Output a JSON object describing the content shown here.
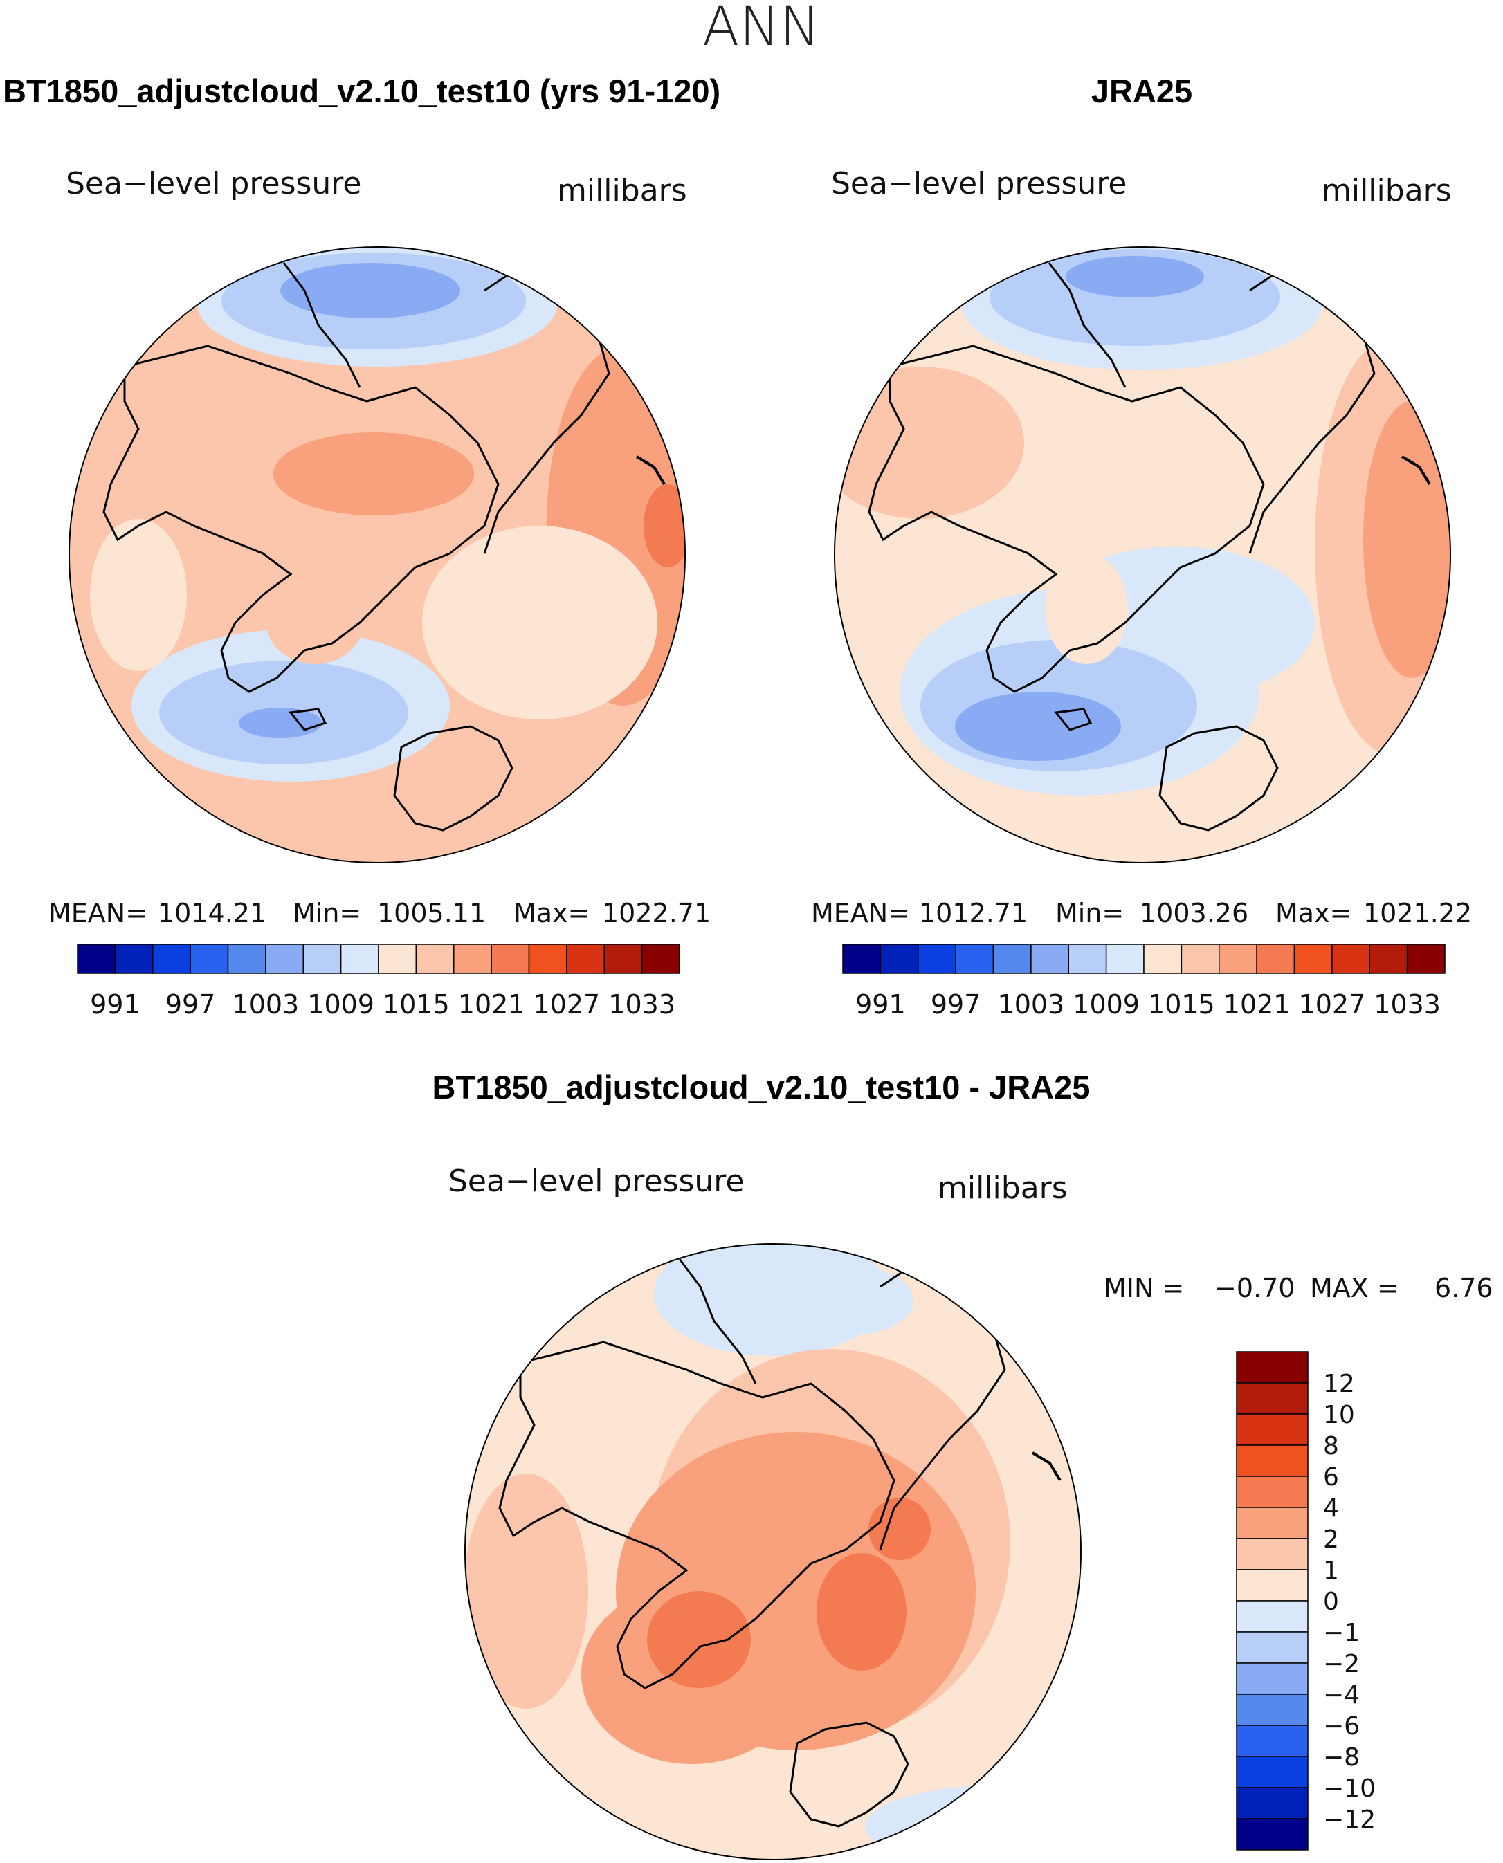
{
  "figure": {
    "title": "ANN",
    "panels": [
      {
        "id": "model",
        "title": "BT1850_adjustcloud_v2.10_test10 (yrs 91-120)",
        "variable": "Sea−level pressure",
        "units": "millibars",
        "stats": {
          "mean_label": "MEAN=",
          "mean": "1014.21",
          "min_label": "Min=",
          "min": "1005.11",
          "max_label": "Max=",
          "max": "1022.71"
        },
        "colorbar_ticks": [
          "991",
          "997",
          "1003",
          "1009",
          "1015",
          "1021",
          "1027",
          "1033"
        ]
      },
      {
        "id": "obs",
        "title": "JRA25",
        "variable": "Sea−level pressure",
        "units": "millibars",
        "stats": {
          "mean_label": "MEAN=",
          "mean": "1012.71",
          "min_label": "Min=",
          "min": "1003.26",
          "max_label": "Max=",
          "max": "1021.22"
        },
        "colorbar_ticks": [
          "991",
          "997",
          "1003",
          "1009",
          "1015",
          "1021",
          "1027",
          "1033"
        ]
      },
      {
        "id": "diff",
        "title": "BT1850_adjustcloud_v2.10_test10 - JRA25",
        "variable": "Sea−level pressure",
        "units": "millibars",
        "stats": {
          "min_label": "MIN =",
          "min": "−0.70",
          "max_label": "MAX =",
          "max": "6.76"
        },
        "colorbar_ticks": [
          "12",
          "10",
          "8",
          "6",
          "4",
          "2",
          "1",
          "0",
          "−1",
          "−2",
          "−4",
          "−6",
          "−8",
          "−10",
          "−12"
        ]
      }
    ],
    "abs_colors": [
      "#00008a",
      "#0022b8",
      "#0a3fe0",
      "#2a62f0",
      "#5589ee",
      "#88abf3",
      "#b7cff8",
      "#d8e8fa",
      "#fde5d4",
      "#fcc6ac",
      "#f9a07c",
      "#f47a52",
      "#f0521f",
      "#d83414",
      "#b31c0a",
      "#880000"
    ],
    "diff_colors": [
      "#880000",
      "#b31c0a",
      "#d83414",
      "#f0521f",
      "#f47a52",
      "#f9a07c",
      "#fcc6ac",
      "#fde5d4",
      "#d8e8fa",
      "#b7cff8",
      "#88abf3",
      "#5589ee",
      "#2a62f0",
      "#0a3fe0",
      "#0022b8",
      "#00008a"
    ]
  }
}
